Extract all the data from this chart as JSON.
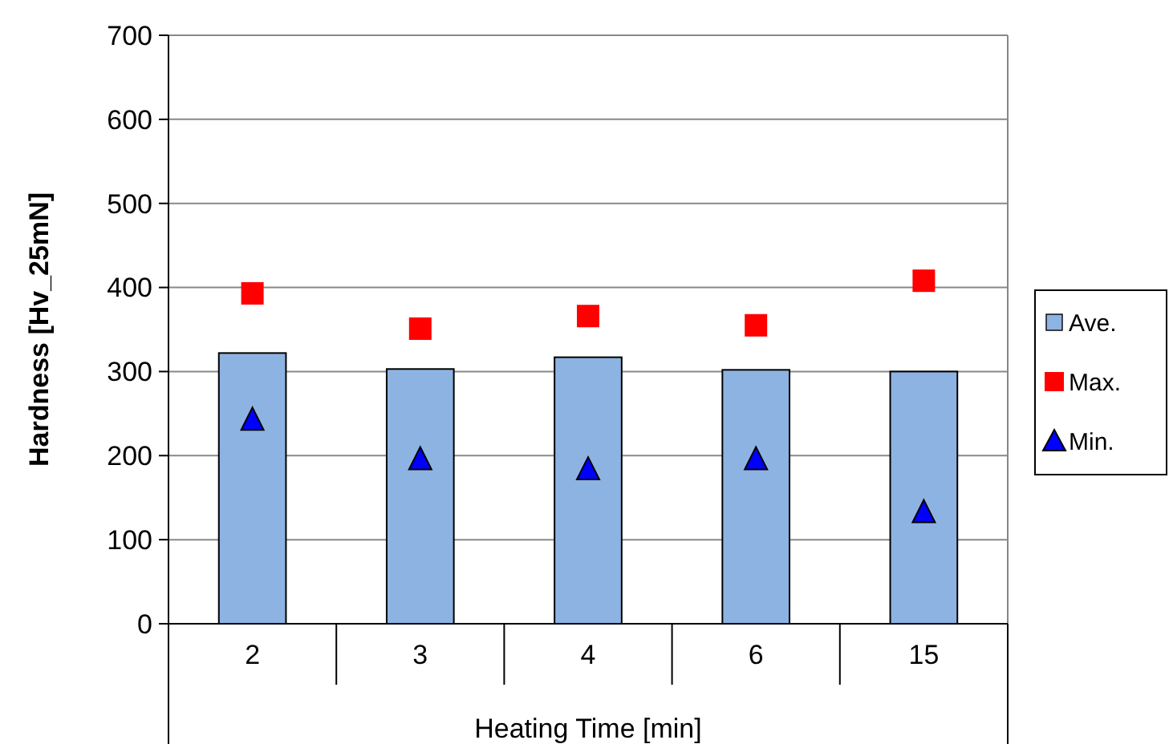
{
  "chart_data": {
    "type": "bar",
    "xlabel": "Heating Time [min]",
    "ylabel": "Hardness [Hv_25mN]",
    "categories": [
      "2",
      "3",
      "4",
      "6",
      "15"
    ],
    "ylim": [
      0,
      700
    ],
    "yticks": [
      0,
      100,
      200,
      300,
      400,
      500,
      600,
      700
    ],
    "grid": "y",
    "legend": "right",
    "series": [
      {
        "name": "Ave.",
        "color": "#8db3e2",
        "values": [
          322,
          303,
          317,
          302,
          300
        ]
      },
      {
        "name": "Max.",
        "type": "scatter",
        "marker": "square",
        "color": "#ff0000",
        "values": [
          393,
          351,
          366,
          355,
          408
        ]
      },
      {
        "name": "Min.",
        "type": "scatter",
        "marker": "triangle",
        "color": "#0000ff",
        "values": [
          242,
          195,
          183,
          195,
          132
        ]
      }
    ]
  }
}
